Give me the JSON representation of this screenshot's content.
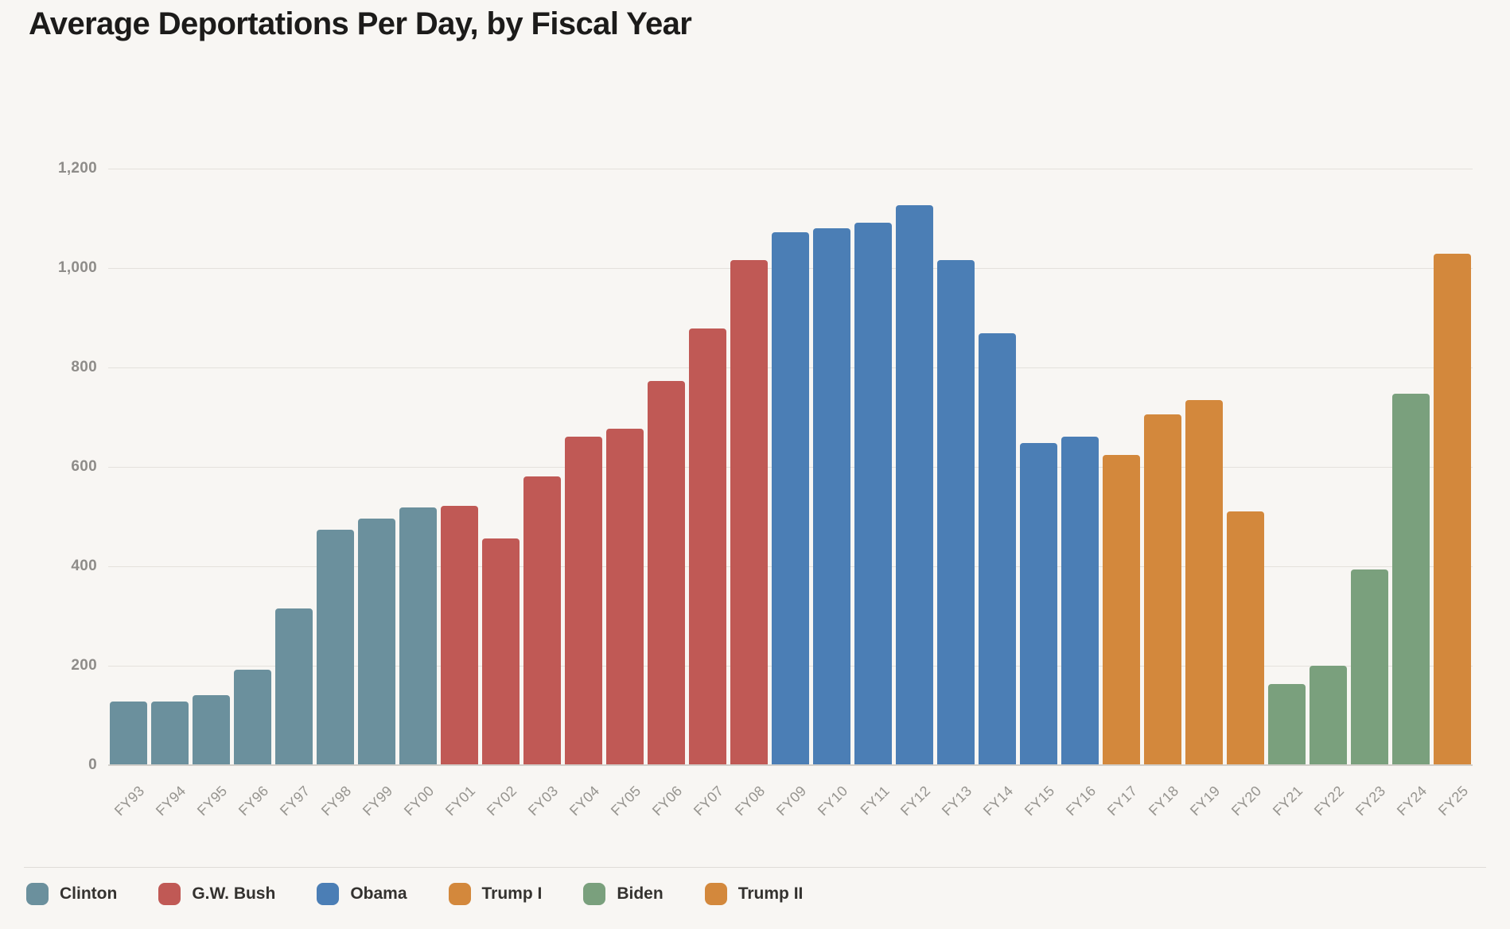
{
  "title": "Average Deportations Per Day, by Fiscal Year",
  "chart_data": {
    "type": "bar",
    "title": "Average Deportations Per Day, by Fiscal Year",
    "xlabel": "",
    "ylabel": "",
    "ylim": [
      0,
      1200
    ],
    "grid": true,
    "legend_position": "bottom",
    "categories": [
      "FY93",
      "FY94",
      "FY95",
      "FY96",
      "FY97",
      "FY98",
      "FY99",
      "FY00",
      "FY01",
      "FY02",
      "FY03",
      "FY04",
      "FY05",
      "FY06",
      "FY07",
      "FY08",
      "FY09",
      "FY10",
      "FY11",
      "FY12",
      "FY13",
      "FY14",
      "FY15",
      "FY16",
      "FY17",
      "FY18",
      "FY19",
      "FY20",
      "FY21",
      "FY22",
      "FY23",
      "FY24",
      "FY25"
    ],
    "values": [
      126,
      126,
      139,
      190,
      314,
      472,
      494,
      517,
      520,
      454,
      580,
      660,
      676,
      772,
      877,
      1015,
      1070,
      1078,
      1090,
      1125,
      1014,
      868,
      646,
      659,
      622,
      704,
      733,
      509,
      162,
      198,
      392,
      745,
      1028
    ],
    "bar_presidents": [
      "Clinton",
      "Clinton",
      "Clinton",
      "Clinton",
      "Clinton",
      "Clinton",
      "Clinton",
      "Clinton",
      "G.W. Bush",
      "G.W. Bush",
      "G.W. Bush",
      "G.W. Bush",
      "G.W. Bush",
      "G.W. Bush",
      "G.W. Bush",
      "G.W. Bush",
      "Obama",
      "Obama",
      "Obama",
      "Obama",
      "Obama",
      "Obama",
      "Obama",
      "Obama",
      "Trump I",
      "Trump I",
      "Trump I",
      "Trump I",
      "Biden",
      "Biden",
      "Biden",
      "Biden",
      "Trump II"
    ],
    "yticks": [
      0,
      200,
      400,
      600,
      800,
      1000,
      1200
    ],
    "ytick_labels": [
      "0",
      "200",
      "400",
      "600",
      "800",
      "1,000",
      "1,200"
    ],
    "legend": [
      {
        "label": "Clinton",
        "color": "#6b909d"
      },
      {
        "label": "G.W. Bush",
        "color": "#c05955"
      },
      {
        "label": "Obama",
        "color": "#4b7eb5"
      },
      {
        "label": "Trump I",
        "color": "#d3883c"
      },
      {
        "label": "Biden",
        "color": "#7aa07d"
      },
      {
        "label": "Trump II",
        "color": "#d3883c"
      }
    ]
  },
  "colors": {
    "background": "#f8f6f3",
    "title_text": "#1c1b1a",
    "gridline": "#e4e1dc",
    "axis_baseline": "#d2cfca",
    "y_tick_text": "#8e8c89",
    "x_tick_text": "#96948f",
    "legend_text": "#34322f"
  }
}
